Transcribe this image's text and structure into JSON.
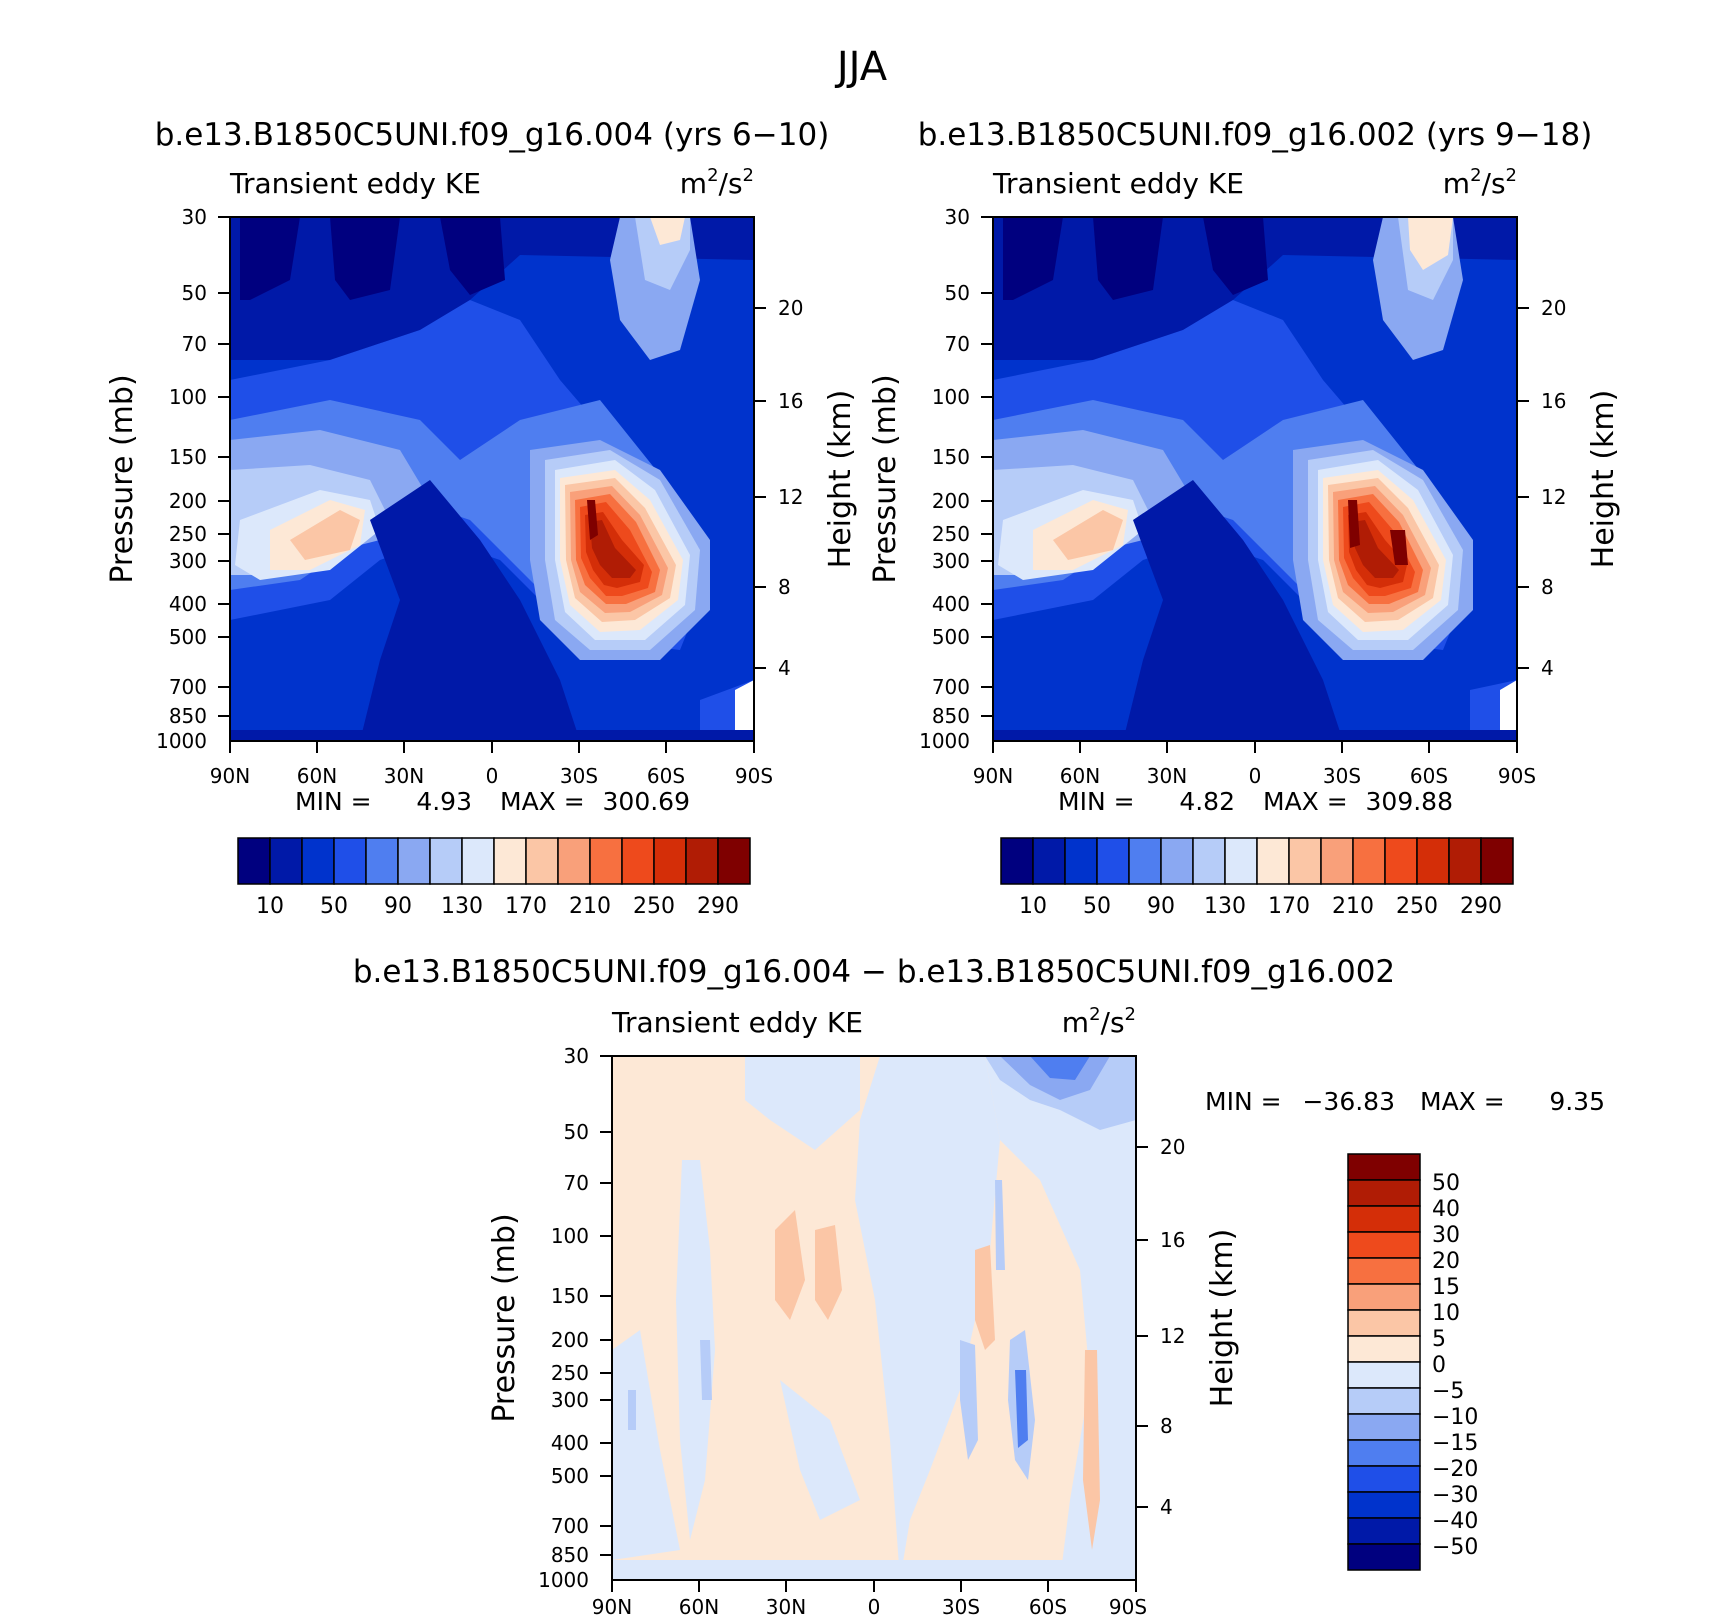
{
  "figure": {
    "title": "JJA",
    "panel_left_label": "Transient eddy KE",
    "units_base": "m",
    "units_exp1": "2",
    "units_mid": "/s",
    "units_exp2": "2",
    "y_label": "Pressure (mb)",
    "y2_label": "Height (km)"
  },
  "chart_data": [
    {
      "type": "heatmap",
      "title": "b.e13.B1850C5UNI.f09_g16.004 (yrs 6−10)",
      "panel_label": "Transient eddy KE",
      "x_ticks": [
        "90N",
        "60N",
        "30N",
        "0",
        "30S",
        "60S",
        "90S"
      ],
      "y_ticks": [
        30,
        50,
        70,
        100,
        150,
        200,
        250,
        300,
        400,
        500,
        700,
        850,
        1000
      ],
      "y2_ticks": [
        20,
        16,
        12,
        8,
        4
      ],
      "ylim": [
        30,
        1000
      ],
      "y_scale": "log",
      "min_label": "MIN =",
      "min_value": "4.93",
      "max_label": "MAX =",
      "max_value": "300.69",
      "colorbar_levels": [
        "10",
        "50",
        "90",
        "130",
        "170",
        "210",
        "250",
        "290"
      ],
      "colorbar_colors": [
        "#00007f",
        "#0019a8",
        "#0033cc",
        "#1f4fe8",
        "#4f7ef0",
        "#8aa8f2",
        "#b6ccf8",
        "#dce8fb",
        "#fde8d6",
        "#fbc6a6",
        "#f9a07a",
        "#f77040",
        "#ee4a1c",
        "#d42e08",
        "#b01c05",
        "#7f0000"
      ],
      "colorbar_placement": "bottom"
    },
    {
      "type": "heatmap",
      "title": "b.e13.B1850C5UNI.f09_g16.002 (yrs 9−18)",
      "panel_label": "Transient eddy KE",
      "x_ticks": [
        "90N",
        "60N",
        "30N",
        "0",
        "30S",
        "60S",
        "90S"
      ],
      "y_ticks": [
        30,
        50,
        70,
        100,
        150,
        200,
        250,
        300,
        400,
        500,
        700,
        850,
        1000
      ],
      "y2_ticks": [
        20,
        16,
        12,
        8,
        4
      ],
      "ylim": [
        30,
        1000
      ],
      "y_scale": "log",
      "min_label": "MIN =",
      "min_value": "4.82",
      "max_label": "MAX =",
      "max_value": "309.88",
      "colorbar_levels": [
        "10",
        "50",
        "90",
        "130",
        "170",
        "210",
        "250",
        "290"
      ],
      "colorbar_colors": [
        "#00007f",
        "#0019a8",
        "#0033cc",
        "#1f4fe8",
        "#4f7ef0",
        "#8aa8f2",
        "#b6ccf8",
        "#dce8fb",
        "#fde8d6",
        "#fbc6a6",
        "#f9a07a",
        "#f77040",
        "#ee4a1c",
        "#d42e08",
        "#b01c05",
        "#7f0000"
      ],
      "colorbar_placement": "bottom"
    },
    {
      "type": "heatmap",
      "title": "b.e13.B1850C5UNI.f09_g16.004 − b.e13.B1850C5UNI.f09_g16.002",
      "panel_label": "Transient eddy KE",
      "x_ticks": [
        "90N",
        "60N",
        "30N",
        "0",
        "30S",
        "60S",
        "90S"
      ],
      "y_ticks": [
        30,
        50,
        70,
        100,
        150,
        200,
        250,
        300,
        400,
        500,
        700,
        850,
        1000
      ],
      "y2_ticks": [
        20,
        16,
        12,
        8,
        4
      ],
      "ylim": [
        30,
        1000
      ],
      "y_scale": "log",
      "min_label": "MIN =",
      "min_value": "−36.83",
      "max_label": "MAX =",
      "max_value": "9.35",
      "colorbar_levels": [
        "50",
        "40",
        "30",
        "20",
        "15",
        "10",
        "5",
        "0",
        "−5",
        "−10",
        "−15",
        "−20",
        "−30",
        "−40",
        "−50"
      ],
      "colorbar_colors": [
        "#7f0000",
        "#b01c05",
        "#d42e08",
        "#ee4a1c",
        "#f77040",
        "#f9a07a",
        "#fbc6a6",
        "#fde8d6",
        "#dce8fb",
        "#b6ccf8",
        "#8aa8f2",
        "#4f7ef0",
        "#1f4fe8",
        "#0033cc",
        "#0019a8",
        "#00007f"
      ],
      "colorbar_placement": "right"
    }
  ]
}
